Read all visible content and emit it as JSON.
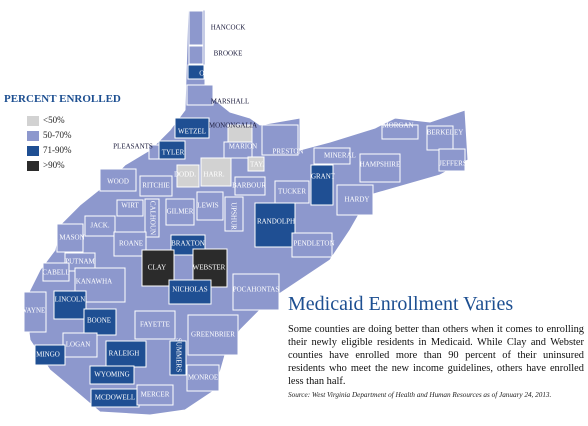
{
  "legend": {
    "title": "PERCENT ENROLLED",
    "items": [
      {
        "label": "<50%",
        "color": "#d2d2d2"
      },
      {
        "label": "50-70%",
        "color": "#8d98cd"
      },
      {
        "label": "71-90%",
        "color": "#1f4f93"
      },
      {
        "label": ">90%",
        "color": "#2b2b2b"
      }
    ]
  },
  "counties": [
    {
      "name": "HANCOCK",
      "category": 1
    },
    {
      "name": "BROOKE",
      "category": 1
    },
    {
      "name": "OHIO",
      "category": 2
    },
    {
      "name": "MARSHALL",
      "category": 1
    },
    {
      "name": "MONONGALIA",
      "category": 0
    },
    {
      "name": "WETZEL",
      "category": 2
    },
    {
      "name": "MARION",
      "category": 1
    },
    {
      "name": "PRESTON",
      "category": 1
    },
    {
      "name": "PLEASANTS",
      "category": 1
    },
    {
      "name": "TYLER",
      "category": 2
    },
    {
      "name": "DODD.",
      "category": 0
    },
    {
      "name": "HARR.",
      "category": 0
    },
    {
      "name": "TAY.",
      "category": 0
    },
    {
      "name": "WOOD",
      "category": 1
    },
    {
      "name": "RITCHIE",
      "category": 1
    },
    {
      "name": "BARBOUR",
      "category": 1
    },
    {
      "name": "TUCKER",
      "category": 1
    },
    {
      "name": "MINERAL",
      "category": 1
    },
    {
      "name": "MORGAN",
      "category": 1
    },
    {
      "name": "BERKELEY",
      "category": 1
    },
    {
      "name": "JEFFERSON",
      "category": 1
    },
    {
      "name": "HAMPSHIRE",
      "category": 1
    },
    {
      "name": "HARDY",
      "category": 1
    },
    {
      "name": "GRANT",
      "category": 2
    },
    {
      "name": "WIRT",
      "category": 1
    },
    {
      "name": "CALHOUN",
      "category": 1
    },
    {
      "name": "GILMER",
      "category": 1
    },
    {
      "name": "LEWIS",
      "category": 1
    },
    {
      "name": "UPSHUR",
      "category": 1
    },
    {
      "name": "RANDOLPH",
      "category": 2
    },
    {
      "name": "PENDLETON",
      "category": 1
    },
    {
      "name": "JACK.",
      "category": 1
    },
    {
      "name": "MASON",
      "category": 1
    },
    {
      "name": "ROANE",
      "category": 1
    },
    {
      "name": "BRAXTON",
      "category": 2
    },
    {
      "name": "PUTNAM",
      "category": 1
    },
    {
      "name": "CLAY",
      "category": 3
    },
    {
      "name": "WEBSTER",
      "category": 3
    },
    {
      "name": "POCAHONTAS",
      "category": 1
    },
    {
      "name": "CABELL",
      "category": 1
    },
    {
      "name": "KANAWHA",
      "category": 1
    },
    {
      "name": "NICHOLAS",
      "category": 2
    },
    {
      "name": "WAYNE",
      "category": 1
    },
    {
      "name": "LINCOLN",
      "category": 2
    },
    {
      "name": "BOONE",
      "category": 2
    },
    {
      "name": "FAYETTE",
      "category": 1
    },
    {
      "name": "GREENBRIER",
      "category": 1
    },
    {
      "name": "LOGAN",
      "category": 1
    },
    {
      "name": "MINGO",
      "category": 2
    },
    {
      "name": "RALEIGH",
      "category": 2
    },
    {
      "name": "SUMMERS",
      "category": 2
    },
    {
      "name": "MONROE",
      "category": 1
    },
    {
      "name": "WYOMING",
      "category": 2
    },
    {
      "name": "MCDOWELL",
      "category": 2
    },
    {
      "name": "MERCER",
      "category": 1
    }
  ],
  "title": "Medicaid Enrollment Varies",
  "body": "Some counties are doing better than others when it comes to enrolling their newly eligible residents in Medicaid. While Clay and Webster counties have enrolled more than 90 percent of their uninsured residents who meet the new income guidelines, others have enrolled less than half.",
  "source": "Source: West Virginia Department of Health and Human Resources as of January 24, 2013."
}
